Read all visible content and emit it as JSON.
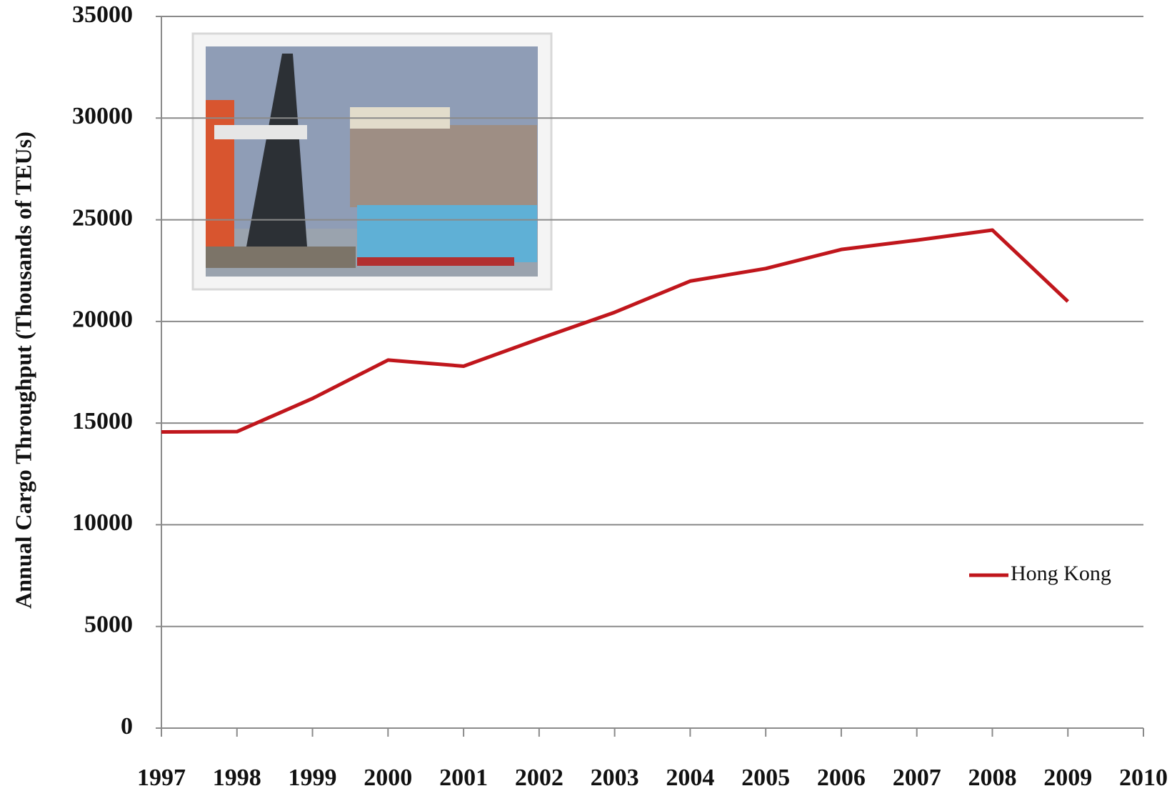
{
  "chart_data": {
    "type": "line",
    "y_label": "Annual Cargo Throughput (Thousands of TEUs)",
    "x": [
      1997,
      1998,
      1999,
      2000,
      2001,
      2002,
      2003,
      2004,
      2005,
      2006,
      2007,
      2008,
      2009
    ],
    "series": [
      {
        "name": "Hong Kong",
        "color": "#c0161c",
        "values": [
          14567,
          14582,
          16211,
          18100,
          17800,
          19144,
          20449,
          21984,
          22602,
          23539,
          23998,
          24494,
          20983
        ]
      }
    ],
    "xlim": [
      1997,
      2010
    ],
    "xticks": [
      1997,
      1998,
      1999,
      2000,
      2001,
      2002,
      2003,
      2004,
      2005,
      2006,
      2007,
      2008,
      2009,
      2010
    ],
    "ylim": [
      0,
      35000
    ],
    "yticks": [
      0,
      5000,
      10000,
      15000,
      20000,
      25000,
      30000,
      35000
    ],
    "grid": true,
    "legend_position": "right"
  }
}
